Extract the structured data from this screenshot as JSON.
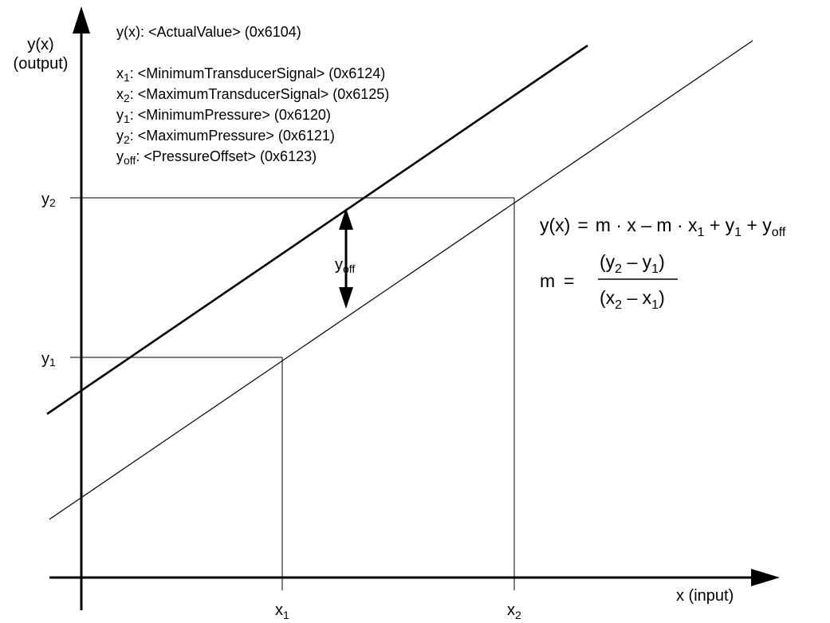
{
  "axes": {
    "y_label_line1": "y(x)",
    "y_label_line2": "(output)",
    "x_label": "x (input)"
  },
  "legend": [
    {
      "sym": "y(x)",
      "sub": "",
      "text": ": <ActualValue> (0x6104)"
    },
    {
      "sym": "x",
      "sub": "1",
      "text": ": <MinimumTransducerSignal> (0x6124)"
    },
    {
      "sym": "x",
      "sub": "2",
      "text": ": <MaximumTransducerSignal> (0x6125)"
    },
    {
      "sym": "y",
      "sub": "1",
      "text": ": <MinimumPressure> (0x6120)"
    },
    {
      "sym": "y",
      "sub": "2",
      "text": ": <MaximumPressure> (0x6121)"
    },
    {
      "sym": "y",
      "sub": "off",
      "text": ": <PressureOffset> (0x6123)"
    }
  ],
  "ticks": {
    "y2": {
      "sym": "y",
      "sub": "2"
    },
    "y1": {
      "sym": "y",
      "sub": "1"
    },
    "x1": {
      "sym": "x",
      "sub": "1"
    },
    "x2": {
      "sym": "x",
      "sub": "2"
    }
  },
  "offset_label": {
    "sym": "y",
    "sub": "off"
  },
  "formula": {
    "line1_lhs": "y(x)",
    "line1_eq": "=",
    "line1_rhs": "m · x – m · x",
    "line1_sub1": "1",
    "line1_plus1": " + y",
    "line1_sub2": "1",
    "line1_plus2": " + y",
    "line1_sub3": "off",
    "m": "m",
    "eq": "=",
    "num_open": "(y",
    "num_sub2": "2",
    "num_minus": " – y",
    "num_sub1": "1",
    "num_close": ")",
    "den_open": "(x",
    "den_sub2": "2",
    "den_minus": " – x",
    "den_sub1": "1",
    "den_close": ")"
  }
}
